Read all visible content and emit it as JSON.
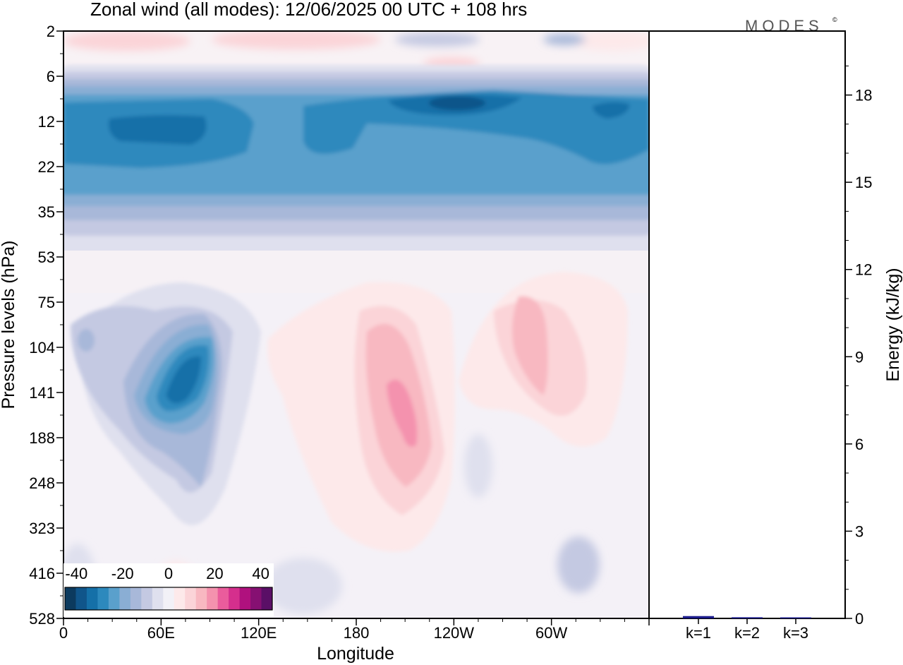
{
  "title": "Zonal wind (all modes):  12/06/2025  00 UTC  + 108 hrs",
  "brand": "MODES",
  "brand_mark": "©",
  "chart_data": [
    {
      "type": "heatmap",
      "variable": "Zonal wind",
      "xlabel": "Longitude",
      "ylabel": "Pressure levels (hPa)",
      "x_ticks": [
        "0",
        "60E",
        "120E",
        "180",
        "120W",
        "60W"
      ],
      "x_tick_longitudes": [
        0,
        60,
        120,
        180,
        240,
        300
      ],
      "xlim": [
        0,
        360
      ],
      "y_ticks": [
        "2",
        "6",
        "12",
        "22",
        "35",
        "53",
        "75",
        "104",
        "141",
        "188",
        "248",
        "323",
        "416",
        "528"
      ],
      "colorbar": {
        "tick_labels": [
          "-40",
          "-20",
          "0",
          "20",
          "40"
        ],
        "tick_values": [
          -40,
          -20,
          0,
          20,
          40
        ],
        "levels": [
          -45,
          -40,
          -35,
          -30,
          -25,
          -20,
          -15,
          -10,
          -5,
          0,
          5,
          10,
          15,
          20,
          25,
          30,
          35,
          40,
          45
        ],
        "colors": [
          "#0c3a5e",
          "#10558a",
          "#1570a8",
          "#2d89bd",
          "#5aa0cc",
          "#8aaed4",
          "#a8b8d9",
          "#c4c9e2",
          "#dfe0ee",
          "#f2f1f7",
          "#fde9ea",
          "#fbd4d8",
          "#f8b8c1",
          "#f492ae",
          "#ea5c9c",
          "#d52f8d",
          "#b0117e",
          "#861072",
          "#5a0f66"
        ]
      },
      "features": [
        {
          "name": "stratospheric easterly jet",
          "level_range_hPa": [
            8,
            30
          ],
          "lon_range": [
            0,
            360
          ],
          "min_wind": -35
        },
        {
          "name": "easterly core",
          "level_range_hPa": [
            9,
            12
          ],
          "lon_range": [
            200,
            250
          ],
          "min_wind": -45
        },
        {
          "name": "tropospheric easterly maximum",
          "level_range_hPa": [
            90,
            190
          ],
          "lon_center": 72,
          "min_wind": -35
        },
        {
          "name": "westerly maximum",
          "level_range_hPa": [
            85,
            250
          ],
          "lon_center": 198,
          "max_wind": 20
        },
        {
          "name": "westerly region",
          "level_range_hPa": [
            65,
            200
          ],
          "lon_center": 280,
          "max_wind": 15
        }
      ]
    },
    {
      "type": "bar",
      "ylabel": "Energy (kJ/kg)",
      "categories": [
        "k=1",
        "k=2",
        "k=3"
      ],
      "values": [
        0.08,
        0.04,
        0.02
      ],
      "ylim": [
        0,
        20.2
      ],
      "y_ticks": [
        0,
        3,
        6,
        9,
        12,
        15,
        18
      ],
      "bar_color": "#1b1b8a"
    }
  ]
}
